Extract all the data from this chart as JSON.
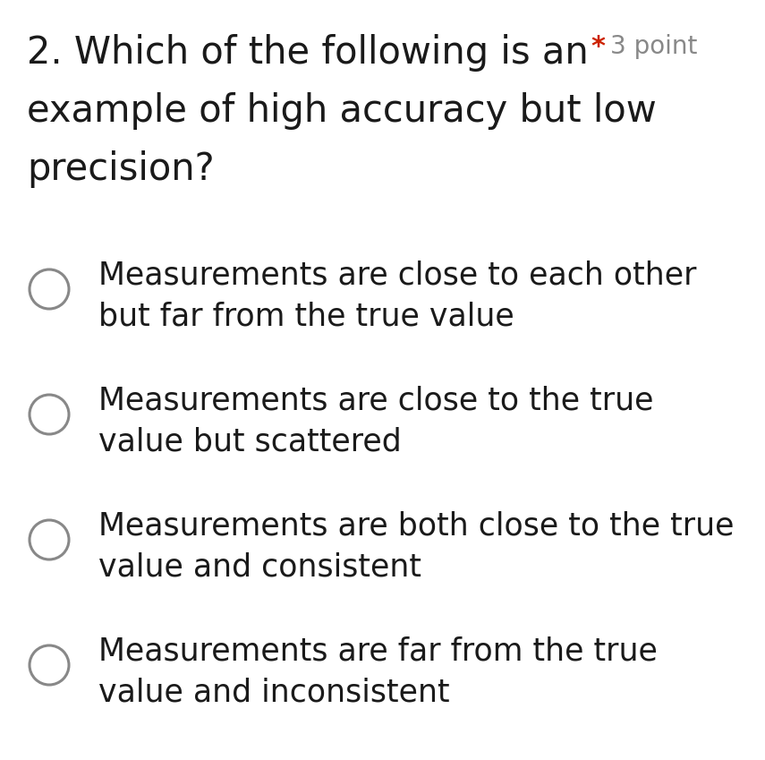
{
  "background_color": "#ffffff",
  "question_number": "2.",
  "question_text_line1": "Which of the following is an",
  "question_text_line2": "example of high accuracy but low",
  "question_text_line3": "precision?",
  "points_star": "*",
  "points_text": "3 point",
  "star_color": "#cc2200",
  "points_color": "#888888",
  "question_color": "#1a1a1a",
  "option_color": "#1a1a1a",
  "circle_edge_color": "#888888",
  "circle_face_color": "#ffffff",
  "options": [
    [
      "Measurements are close to each other",
      "but far from the true value"
    ],
    [
      "Measurements are close to the true",
      "value but scattered"
    ],
    [
      "Measurements are both close to the true",
      "value and consistent"
    ],
    [
      "Measurements are far from the true",
      "value and inconsistent"
    ]
  ],
  "question_fontsize": 30,
  "option_fontsize": 25,
  "points_fontsize": 20
}
